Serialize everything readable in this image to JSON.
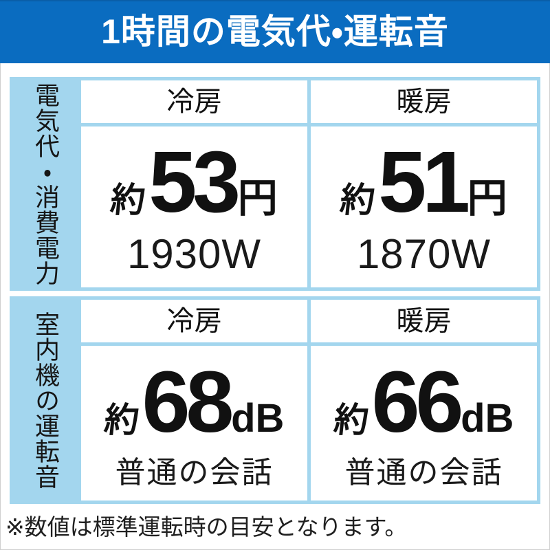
{
  "title": "1時間の電気代・運転音",
  "footnote": "※数値は標準運転時の目安となります。",
  "colors": {
    "title_bg": "#0a6cc0",
    "title_text": "#ffffff",
    "panel_frame": "#a3d6ee",
    "cell_bg": "#ffffff",
    "text": "#111111"
  },
  "sections": [
    {
      "sidebar": "電気代・消費電力",
      "columns": [
        {
          "header": "冷房",
          "prefix": "約",
          "value": "53",
          "unit": "円",
          "sub": "1930W"
        },
        {
          "header": "暖房",
          "prefix": "約",
          "value": "51",
          "unit": "円",
          "sub": "1870W"
        }
      ]
    },
    {
      "sidebar": "室内機の運転音",
      "columns": [
        {
          "header": "冷房",
          "prefix": "約",
          "value": "68",
          "unit": "dB",
          "sub": "普通の会話"
        },
        {
          "header": "暖房",
          "prefix": "約",
          "value": "66",
          "unit": "dB",
          "sub": "普通の会話"
        }
      ]
    }
  ],
  "chart_data": {
    "type": "table",
    "title": "1時間の電気代・運転音",
    "tables": [
      {
        "row_label": "電気代・消費電力",
        "columns": [
          "冷房",
          "暖房"
        ],
        "cost_yen_per_hour": [
          53,
          51
        ],
        "power_w": [
          1930,
          1870
        ],
        "display": [
          "約53円 / 1930W",
          "約51円 / 1870W"
        ]
      },
      {
        "row_label": "室内機の運転音",
        "columns": [
          "冷房",
          "暖房"
        ],
        "noise_db": [
          68,
          66
        ],
        "comparison": [
          "普通の会話",
          "普通の会話"
        ],
        "display": [
          "約68dB / 普通の会話",
          "約66dB / 普通の会話"
        ]
      }
    ],
    "note": "※数値は標準運転時の目安となります。"
  }
}
